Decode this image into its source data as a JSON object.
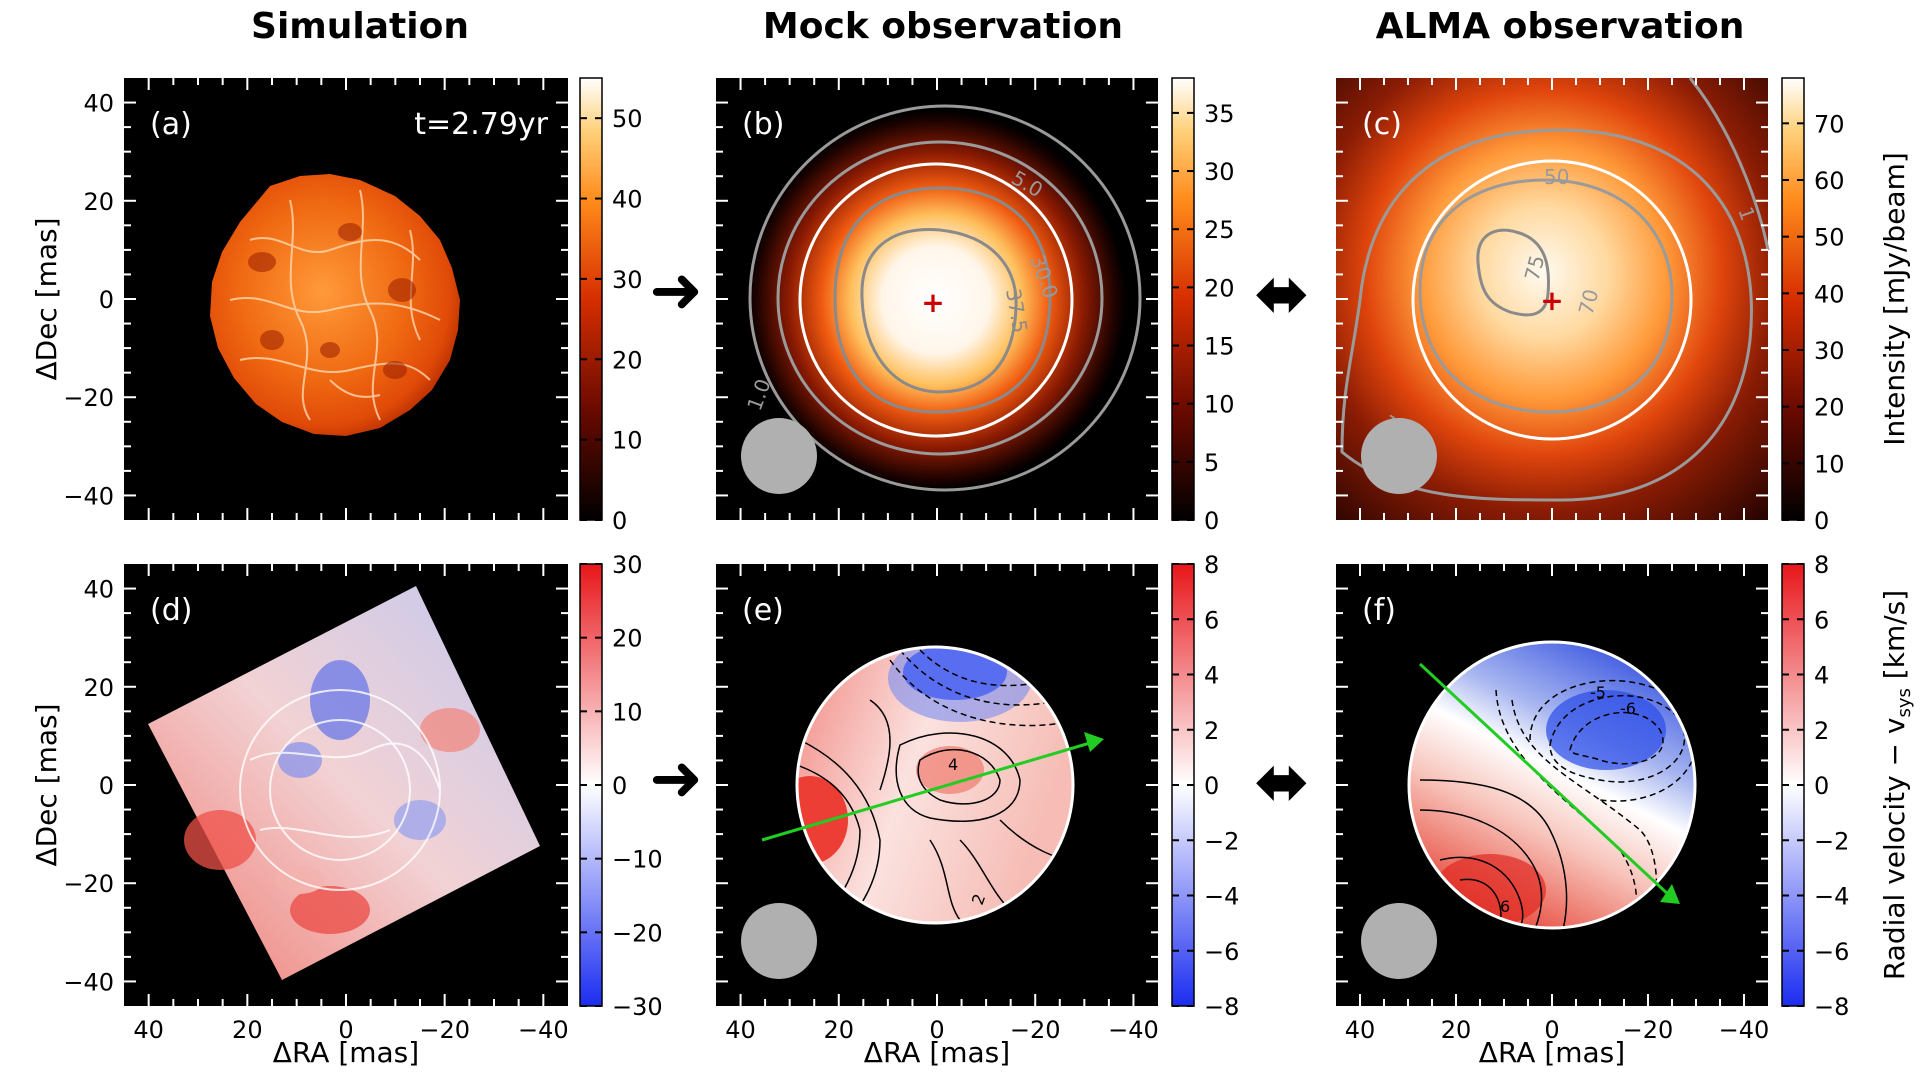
{
  "figure": {
    "column_titles": [
      "Simulation",
      "Mock observation",
      "ALMA observation"
    ],
    "xlabel": "ΔRA [mas]",
    "ylabel": "ΔDec [mas]",
    "intensity_label": "Intensity [mJy/beam]",
    "velocity_label": "Radial velocity  − v",
    "velocity_label_sub": "sys",
    "velocity_label_unit": " [km/s]",
    "time_label": "t=2.79yr",
    "arrow_right": "➜",
    "arrow_both": "⬌",
    "colors": {
      "hot_low": "#000000",
      "hot_mid": "#cc2200",
      "hot_high": "#ffffff",
      "vel_pos": "#e8161b",
      "vel_neg": "#1b2cf0",
      "contour": "#9a9a9a",
      "beam": "#b0b0b0",
      "kinematic_axis": "#22cc22",
      "center_marker": "#cc0000"
    }
  },
  "chart_data": [
    {
      "panel": "a",
      "label": "(a)",
      "type": "heatmap",
      "title": "Simulation",
      "xlabel": "ΔRA [mas]",
      "ylabel": "ΔDec [mas]",
      "xlim": [
        45,
        -45
      ],
      "ylim": [
        -45,
        45
      ],
      "xticks": [
        40,
        20,
        0,
        -20,
        -40
      ],
      "yticks": [
        40,
        20,
        0,
        -20,
        -40
      ],
      "annotation": "t=2.79yr",
      "colorbar": {
        "min": 0,
        "max": 55,
        "ticks": [
          0,
          10,
          20,
          30,
          40,
          50
        ],
        "cmap": "gist_heat"
      },
      "source_radius_mas": 27
    },
    {
      "panel": "b",
      "label": "(b)",
      "type": "heatmap",
      "title": "Mock observation",
      "xlim": [
        45,
        -45
      ],
      "ylim": [
        -45,
        45
      ],
      "colorbar": {
        "min": 0,
        "max": 38,
        "ticks": [
          0,
          5,
          10,
          15,
          20,
          25,
          30,
          35
        ],
        "cmap": "gist_heat"
      },
      "contours": [
        {
          "level": "1.0"
        },
        {
          "level": "5.0"
        },
        {
          "level": "30.0"
        },
        {
          "level": "37.5"
        }
      ],
      "center_marker": [
        0,
        0
      ],
      "beam": "circle"
    },
    {
      "panel": "c",
      "label": "(c)",
      "type": "heatmap",
      "title": "ALMA observation",
      "xlim": [
        45,
        -45
      ],
      "ylim": [
        -45,
        45
      ],
      "colorbar": {
        "min": 0,
        "max": 78,
        "ticks": [
          0,
          10,
          20,
          30,
          40,
          50,
          60,
          70
        ],
        "cmap": "gist_heat",
        "label": "Intensity [mJy/beam]"
      },
      "contours": [
        {
          "level": "1"
        },
        {
          "level": "10"
        },
        {
          "level": "50"
        },
        {
          "level": "70"
        },
        {
          "level": "75"
        }
      ],
      "center_marker": [
        0,
        0
      ],
      "beam": "circle"
    },
    {
      "panel": "d",
      "label": "(d)",
      "type": "heatmap",
      "xlim": [
        45,
        -45
      ],
      "ylim": [
        -45,
        45
      ],
      "colorbar": {
        "min": -30,
        "max": 30,
        "ticks": [
          -30,
          -20,
          -10,
          0,
          10,
          20,
          30
        ],
        "cmap": "bwr"
      }
    },
    {
      "panel": "e",
      "label": "(e)",
      "type": "heatmap",
      "xlim": [
        45,
        -45
      ],
      "ylim": [
        -45,
        45
      ],
      "colorbar": {
        "min": -8,
        "max": 8,
        "ticks": [
          -8,
          -6,
          -4,
          -2,
          0,
          2,
          4,
          6,
          8
        ],
        "cmap": "bwr"
      },
      "contour_labels": [
        "4",
        "2"
      ],
      "kinematic_axis": {
        "from": [
          36,
          -11
        ],
        "to": [
          -34,
          9
        ]
      },
      "beam": "circle"
    },
    {
      "panel": "f",
      "label": "(f)",
      "type": "heatmap",
      "xlim": [
        45,
        -45
      ],
      "ylim": [
        -45,
        45
      ],
      "colorbar": {
        "min": -8,
        "max": 8,
        "ticks": [
          -8,
          -6,
          -4,
          -2,
          0,
          2,
          4,
          6,
          8
        ],
        "cmap": "bwr",
        "label": "Radial velocity − vsys [km/s]"
      },
      "contour_labels": [
        "-5",
        "-6",
        "6"
      ],
      "kinematic_axis": {
        "from": [
          27,
          25
        ],
        "to": [
          -26,
          -24
        ]
      },
      "beam": "circle"
    }
  ]
}
